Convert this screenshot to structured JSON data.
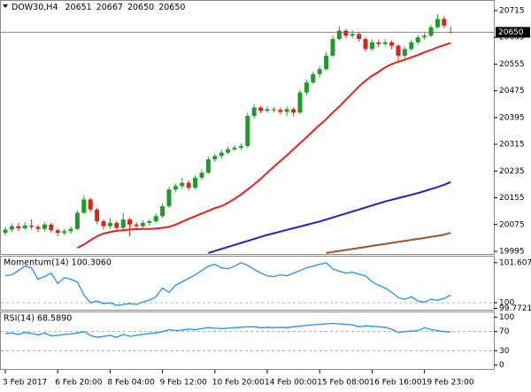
{
  "header": {
    "symbol": "DOW30,H4"
  },
  "chart_data": [
    {
      "type": "candlestick",
      "categories": [
        "3 Feb 2017",
        null,
        null,
        null,
        null,
        null,
        null,
        null,
        "6 Feb 20:00",
        null,
        null,
        null,
        null,
        null,
        null,
        null,
        "8 Feb 04:00",
        null,
        null,
        null,
        null,
        null,
        null,
        null,
        "9 Feb 12:00",
        null,
        null,
        null,
        null,
        null,
        null,
        null,
        "10 Feb 20:00",
        null,
        null,
        null,
        null,
        null,
        null,
        null,
        "14 Feb 00:00",
        null,
        null,
        null,
        null,
        null,
        null,
        null,
        "15 Feb 08:00",
        null,
        null,
        null,
        null,
        null,
        null,
        null,
        "16 Feb 16:00",
        null,
        null,
        null,
        null,
        null,
        null,
        null,
        "19 Feb 23:00",
        null,
        null,
        null,
        null
      ],
      "open": [
        20050,
        20060,
        20070,
        20064,
        20072,
        20068,
        20062,
        20075,
        20058,
        20050,
        20055,
        20062,
        20110,
        20150,
        20120,
        20085,
        20070,
        20080,
        20065,
        20090,
        20075,
        20070,
        20080,
        20085,
        20100,
        20130,
        20180,
        20190,
        20200,
        20185,
        20215,
        20230,
        20270,
        20280,
        20290,
        20300,
        20305,
        20310,
        20400,
        20425,
        20415,
        20420,
        20418,
        20412,
        20420,
        20410,
        20470,
        20500,
        20525,
        20540,
        20580,
        20630,
        20655,
        20640,
        20645,
        20630,
        20600,
        20620,
        20615,
        20620,
        20610,
        20580,
        20600,
        20620,
        20635,
        20640,
        20665,
        20690,
        20651
      ],
      "high": [
        20068,
        20078,
        20080,
        20082,
        20090,
        20075,
        20082,
        20080,
        20064,
        20062,
        20070,
        20118,
        20162,
        20155,
        20125,
        20090,
        20095,
        20086,
        20110,
        20095,
        20082,
        20088,
        20092,
        20108,
        20138,
        20188,
        20198,
        20215,
        20208,
        20222,
        20240,
        20278,
        20288,
        20298,
        20308,
        20312,
        20318,
        20410,
        20435,
        20430,
        20428,
        20425,
        20424,
        20428,
        20426,
        20478,
        20508,
        20532,
        20548,
        20590,
        20640,
        20668,
        20660,
        20655,
        20650,
        20635,
        20628,
        20628,
        20630,
        20626,
        20615,
        20608,
        20628,
        20642,
        20648,
        20672,
        20705,
        20698,
        20667
      ],
      "low": [
        20042,
        20052,
        20056,
        20058,
        20060,
        20052,
        20055,
        20050,
        20040,
        20044,
        20048,
        20058,
        20105,
        20112,
        20076,
        20060,
        20062,
        20056,
        20060,
        20040,
        20062,
        20064,
        20072,
        20080,
        20095,
        20125,
        20172,
        20182,
        20178,
        20180,
        20208,
        20225,
        20262,
        20272,
        20284,
        20295,
        20298,
        20305,
        20392,
        20408,
        20410,
        20410,
        20405,
        20400,
        20398,
        20405,
        20462,
        20495,
        20515,
        20535,
        20575,
        20625,
        20632,
        20632,
        20622,
        20592,
        20595,
        20606,
        20610,
        20600,
        20565,
        20572,
        20594,
        20612,
        20628,
        20635,
        20660,
        20662,
        20650
      ],
      "close": [
        20060,
        20070,
        20064,
        20072,
        20068,
        20062,
        20075,
        20058,
        20050,
        20055,
        20062,
        20110,
        20150,
        20120,
        20085,
        20070,
        20080,
        20065,
        20090,
        20075,
        20070,
        20080,
        20085,
        20100,
        20130,
        20180,
        20190,
        20200,
        20185,
        20215,
        20230,
        20270,
        20280,
        20290,
        20300,
        20305,
        20310,
        20400,
        20425,
        20415,
        20420,
        20418,
        20412,
        20420,
        20410,
        20470,
        20500,
        20525,
        20540,
        20580,
        20630,
        20655,
        20640,
        20645,
        20630,
        20600,
        20620,
        20615,
        20620,
        20610,
        20580,
        20600,
        20620,
        20635,
        20640,
        20665,
        20690,
        20670,
        20650
      ],
      "up_color": "#1e9b2a",
      "down_color": "#d9261c",
      "series": [
        {
          "color": "#e8201c",
          "values": [
            null,
            null,
            null,
            null,
            null,
            null,
            null,
            null,
            null,
            null,
            null,
            20005,
            20015,
            20028,
            20040,
            20048,
            20053,
            20056,
            20058,
            20060,
            20061,
            20062,
            20062,
            20063,
            20065,
            20068,
            20075,
            20083,
            20092,
            20100,
            20108,
            20116,
            20124,
            20130,
            20140,
            20152,
            20165,
            20180,
            20195,
            20212,
            20230,
            20248,
            20265,
            20282,
            20300,
            20318,
            20336,
            20355,
            20373,
            20390,
            20410,
            20428,
            20448,
            20468,
            20488,
            20505,
            20520,
            20532,
            20545,
            20555,
            20562,
            20568,
            20575,
            20582,
            20590,
            20597,
            20605,
            20612,
            20618
          ]
        },
        {
          "color": "#1f23c9",
          "values": [
            null,
            null,
            null,
            null,
            null,
            null,
            null,
            null,
            null,
            null,
            null,
            null,
            null,
            null,
            null,
            null,
            null,
            null,
            null,
            null,
            null,
            null,
            null,
            null,
            null,
            null,
            null,
            null,
            null,
            null,
            null,
            19990,
            19996,
            20002,
            20008,
            20014,
            20020,
            20026,
            20032,
            20038,
            20044,
            20049,
            20054,
            20059,
            20064,
            20069,
            20074,
            20079,
            20084,
            20090,
            20096,
            20102,
            20108,
            20114,
            20120,
            20126,
            20132,
            20138,
            20144,
            20149,
            20154,
            20159,
            20164,
            20169,
            20175,
            20181,
            20187,
            20194,
            20202
          ]
        },
        {
          "color": "#a0522d",
          "values": [
            null,
            null,
            null,
            null,
            null,
            null,
            null,
            null,
            null,
            null,
            null,
            null,
            null,
            null,
            null,
            null,
            null,
            null,
            null,
            null,
            null,
            null,
            null,
            null,
            null,
            null,
            null,
            null,
            null,
            null,
            null,
            null,
            null,
            null,
            null,
            null,
            null,
            null,
            null,
            null,
            null,
            null,
            null,
            null,
            null,
            null,
            null,
            null,
            null,
            19990,
            19993,
            19996,
            19999,
            20002,
            20005,
            20008,
            20011,
            20014,
            20017,
            20020,
            20023,
            20026,
            20029,
            20032,
            20035,
            20038,
            20041,
            20045,
            20050
          ]
        }
      ],
      "ylim": [
        19987,
        20744
      ],
      "yticks": [
        20715,
        20635,
        20555,
        20475,
        20395,
        20315,
        20235,
        20155,
        20075,
        19995
      ]
    },
    {
      "type": "line",
      "title": "Momentum(14) 100.3060",
      "color": "#1e90ff",
      "values": [
        101.08,
        101.12,
        101.29,
        101.47,
        101.4,
        100.94,
        101.05,
        101.19,
        100.77,
        101.01,
        100.94,
        100.84,
        100.31,
        100.0,
        100.07,
        99.96,
        100.0,
        99.89,
        99.93,
        99.96,
        99.93,
        100.03,
        100.1,
        100.24,
        100.59,
        100.42,
        100.7,
        100.84,
        100.98,
        101.12,
        101.29,
        101.47,
        101.54,
        101.4,
        101.36,
        101.47,
        101.607,
        101.5,
        101.33,
        101.19,
        101.08,
        101.05,
        101.12,
        101.08,
        101.19,
        101.29,
        101.4,
        101.47,
        101.54,
        101.6,
        101.36,
        101.26,
        101.19,
        101.22,
        101.15,
        101.08,
        100.84,
        100.7,
        100.59,
        100.42,
        100.21,
        100.14,
        100.24,
        100.07,
        100.03,
        100.14,
        100.1,
        100.17,
        100.306
      ],
      "ylim": [
        99.72,
        101.85
      ],
      "yticks": [
        101.607,
        100,
        99.7721
      ],
      "levels": [
        100
      ]
    },
    {
      "type": "line",
      "title": "RSI(14) 68.5890",
      "color": "#1e90ff",
      "values": [
        66,
        67,
        64,
        68,
        66,
        63,
        67,
        61,
        62,
        64,
        65,
        67,
        70,
        62,
        58,
        60,
        62,
        58,
        64,
        60,
        62,
        64,
        66,
        67,
        70,
        74,
        72,
        73,
        75,
        74,
        76,
        78,
        77,
        76,
        77,
        78,
        79,
        80,
        80,
        78,
        79,
        78,
        79,
        78,
        80,
        81,
        83,
        84,
        85,
        86,
        87,
        86,
        85,
        84,
        80,
        82,
        81,
        80,
        79,
        75,
        68,
        70,
        71,
        72,
        78,
        74,
        72,
        70,
        68.589
      ],
      "ylim": [
        -10,
        110
      ],
      "yticks": [
        100,
        70,
        30,
        0
      ],
      "levels": [
        70,
        30
      ]
    }
  ]
}
